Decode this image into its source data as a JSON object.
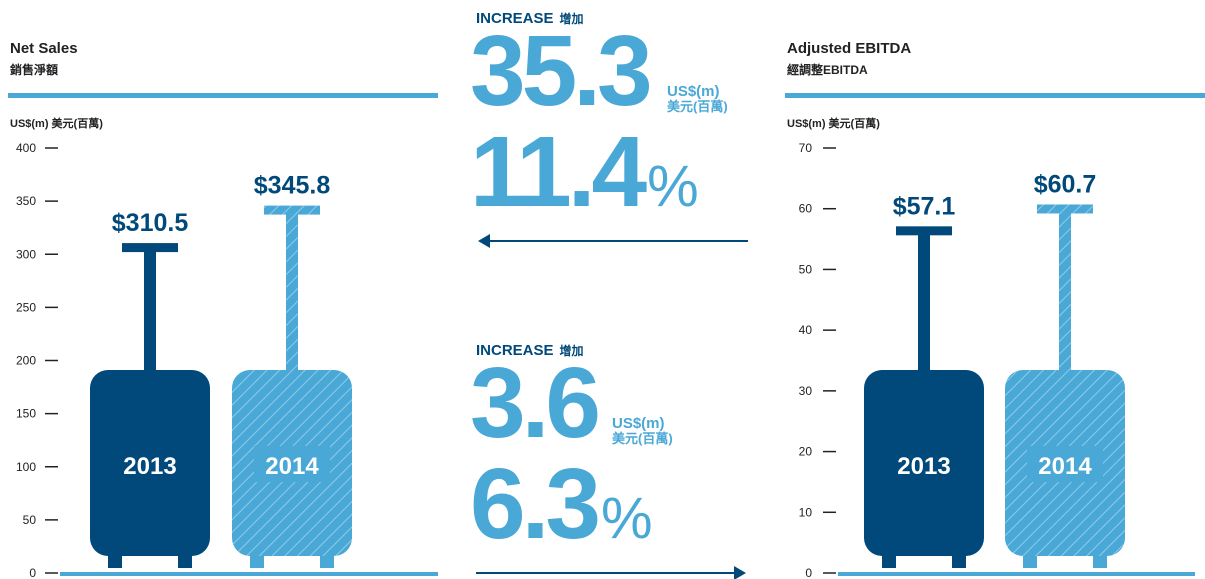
{
  "chart_data": [
    {
      "type": "bar",
      "title": "Net Sales",
      "subtitle": "銷售淨額",
      "ylabel": "US$(m) 美元(百萬)",
      "categories": [
        "2013",
        "2014"
      ],
      "values": [
        310.5,
        345.8
      ],
      "value_labels": [
        "$310.5",
        "$345.8"
      ],
      "colors": [
        "#00497a",
        "#4aa8d6"
      ],
      "hatch": [
        false,
        true
      ],
      "ylim": [
        0,
        400
      ],
      "yticks": [
        0,
        50,
        100,
        150,
        200,
        250,
        300,
        350,
        400
      ],
      "annotations": {
        "label": "INCREASE",
        "label_zh": "增加",
        "change": "35.3",
        "unit": "US$(m)",
        "unit_zh": "美元(百萬)",
        "pct": "11.4",
        "pct_sign": "%"
      }
    },
    {
      "type": "bar",
      "title": "Adjusted EBITDA",
      "subtitle": "經調整EBITDA",
      "ylabel": "US$(m) 美元(百萬)",
      "categories": [
        "2013",
        "2014"
      ],
      "values": [
        57.1,
        60.7
      ],
      "value_labels": [
        "$57.1",
        "$60.7"
      ],
      "colors": [
        "#00497a",
        "#4aa8d6"
      ],
      "hatch": [
        false,
        true
      ],
      "ylim": [
        0,
        70
      ],
      "yticks": [
        0,
        10,
        20,
        30,
        40,
        50,
        60,
        70
      ],
      "annotations": {
        "label": "INCREASE",
        "label_zh": "增加",
        "change": "3.6",
        "unit": "US$(m)",
        "unit_zh": "美元(百萬)",
        "pct": "6.3",
        "pct_sign": "%"
      }
    }
  ]
}
